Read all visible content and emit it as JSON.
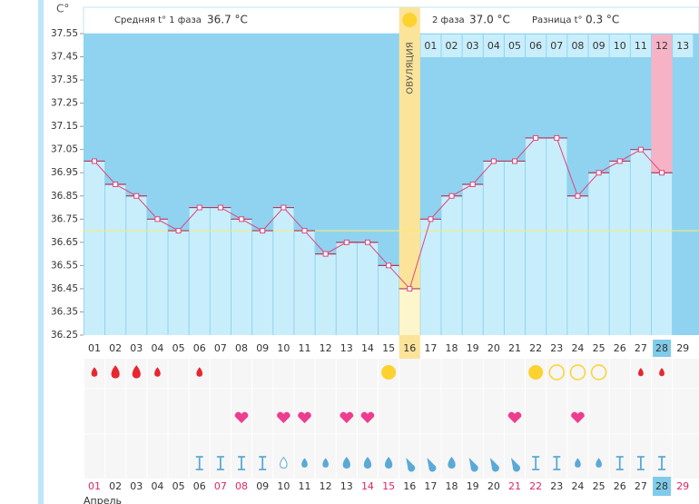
{
  "chart_data": {
    "type": "line",
    "unit_label": "C°",
    "phase1_label": "Средняя t° 1 фаза",
    "phase1_avg": "36.7 °C",
    "phase2_label": "2 фаза",
    "phase2_avg": "37.0 °C",
    "diff_label": "Разница t°",
    "diff_value": "0.3 °C",
    "ovulation_label": "ОВУЛЯЦИЯ",
    "categories": [
      "01",
      "02",
      "03",
      "04",
      "05",
      "06",
      "07",
      "08",
      "09",
      "10",
      "11",
      "12",
      "13",
      "14",
      "15",
      "16",
      "17",
      "18",
      "19",
      "20",
      "21",
      "22",
      "23",
      "24",
      "25",
      "26",
      "27",
      "28",
      "29"
    ],
    "series": [
      {
        "name": "t°",
        "color": "#e0457b",
        "values": [
          37.0,
          36.9,
          36.85,
          36.75,
          36.7,
          36.8,
          36.8,
          36.75,
          36.7,
          36.8,
          36.7,
          36.6,
          36.65,
          36.65,
          36.55,
          36.45,
          36.75,
          36.85,
          36.9,
          37.0,
          37.0,
          37.1,
          37.1,
          36.85,
          36.95,
          37.0,
          37.05,
          36.95,
          null
        ]
      }
    ],
    "cover_line": 36.7,
    "phase2_days": [
      "01",
      "02",
      "03",
      "04",
      "05",
      "06",
      "07",
      "08",
      "09",
      "10",
      "11",
      "12",
      "13"
    ],
    "dates": [
      "01",
      "02",
      "03",
      "04",
      "05",
      "06",
      "07",
      "08",
      "09",
      "10",
      "11",
      "12",
      "13",
      "14",
      "15",
      "16",
      "17",
      "18",
      "19",
      "20",
      "21",
      "22",
      "23",
      "24",
      "25",
      "26",
      "27",
      "28",
      "29"
    ],
    "month": "Апрель",
    "ylim": [
      36.25,
      37.55
    ],
    "yticks": [
      37.55,
      37.45,
      37.35,
      37.25,
      37.15,
      37.05,
      36.95,
      36.85,
      36.75,
      36.65,
      36.55,
      36.45,
      36.35,
      36.25
    ]
  }
}
